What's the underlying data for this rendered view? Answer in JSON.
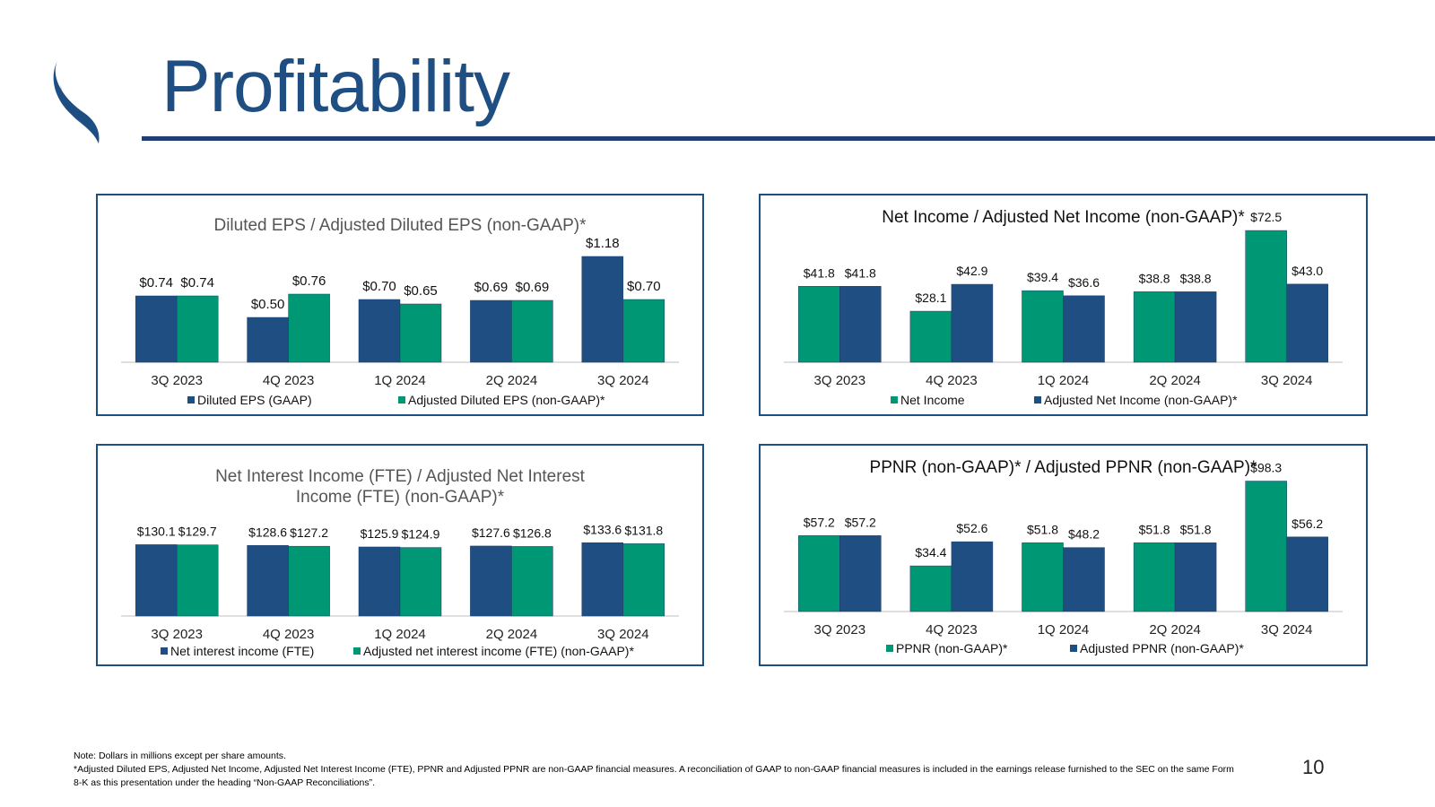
{
  "slide": {
    "title": "Profitability",
    "page_number": "10",
    "notes": [
      "Note: Dollars in millions except per share amounts.",
      "*Adjusted Diluted EPS, Adjusted Net Income, Adjusted Net Interest Income (FTE), PPNR and Adjusted PPNR are non-GAAP financial measures. A reconciliation of GAAP to non-GAAP financial measures is included in the earnings release furnished to the SEC on the same Form 8-K as this presentation under the heading “Non-GAAP Reconciliations”."
    ]
  },
  "colors": {
    "navy": "#1f4e83",
    "green": "#009874",
    "rule": "#1f3f73",
    "axis": "#bfbfbf",
    "text": "#333333"
  },
  "chart_data": [
    {
      "type": "bar",
      "title": "Diluted EPS / Adjusted Diluted EPS (non-GAAP)*",
      "categories": [
        "3Q 2023",
        "4Q 2023",
        "1Q 2024",
        "2Q 2024",
        "3Q 2024"
      ],
      "series": [
        {
          "name": "Diluted EPS (GAAP)",
          "color": "#1f4e83",
          "values": [
            0.74,
            0.5,
            0.7,
            0.69,
            1.18
          ],
          "labels": [
            "$0.74",
            "$0.50",
            "$0.70",
            "$0.69",
            "$1.18"
          ]
        },
        {
          "name": "Adjusted Diluted EPS (non-GAAP)*",
          "color": "#009874",
          "values": [
            0.74,
            0.76,
            0.65,
            0.69,
            0.7
          ],
          "labels": [
            "$0.74",
            "$0.76",
            "$0.65",
            "$0.69",
            "$0.70"
          ]
        }
      ],
      "ylim": [
        0,
        1.2
      ],
      "grid": false,
      "legend": "bottom"
    },
    {
      "type": "bar",
      "title": "Net Income / Adjusted Net Income (non-GAAP)*",
      "categories": [
        "3Q 2023",
        "4Q 2023",
        "1Q 2024",
        "2Q 2024",
        "3Q 2024"
      ],
      "series": [
        {
          "name": "Net Income",
          "color": "#009874",
          "values": [
            41.8,
            28.1,
            39.4,
            38.8,
            72.5
          ],
          "labels": [
            "$41.8",
            "$28.1",
            "$39.4",
            "$38.8",
            "$72.5"
          ]
        },
        {
          "name": "Adjusted Net Income (non-GAAP)*",
          "color": "#1f4e83",
          "values": [
            41.8,
            42.9,
            36.6,
            38.8,
            43.0
          ],
          "labels": [
            "$41.8",
            "$42.9",
            "$36.6",
            "$38.8",
            "$43.0"
          ]
        }
      ],
      "ylim": [
        0,
        75
      ],
      "grid": false,
      "legend": "bottom"
    },
    {
      "type": "bar",
      "title": "Net Interest Income (FTE) / Adjusted Net Interest Income (FTE) (non-GAAP)*",
      "title_lines": [
        "Net Interest Income (FTE) / Adjusted Net Interest",
        "Income (FTE) (non-GAAP)*"
      ],
      "categories": [
        "3Q 2023",
        "4Q 2023",
        "1Q 2024",
        "2Q 2024",
        "3Q 2024"
      ],
      "series": [
        {
          "name": "Net interest income (FTE)",
          "color": "#1f4e83",
          "values": [
            130.1,
            128.6,
            125.9,
            127.6,
            133.6
          ],
          "labels": [
            "$130.1",
            "$128.6",
            "$125.9",
            "$127.6",
            "$133.6"
          ]
        },
        {
          "name": "Adjusted net interest income (FTE) (non-GAAP)*",
          "color": "#009874",
          "values": [
            129.7,
            127.2,
            124.9,
            126.8,
            131.8
          ],
          "labels": [
            "$129.7",
            "$127.2",
            "$124.9",
            "$126.8",
            "$131.8"
          ]
        }
      ],
      "ylim": [
        0,
        170
      ],
      "grid": false,
      "legend": "bottom"
    },
    {
      "type": "bar",
      "title": "PPNR (non-GAAP)* / Adjusted PPNR (non-GAAP)*",
      "categories": [
        "3Q 2023",
        "4Q 2023",
        "1Q 2024",
        "2Q 2024",
        "3Q 2024"
      ],
      "series": [
        {
          "name": "PPNR (non-GAAP)*",
          "color": "#009874",
          "values": [
            57.2,
            34.4,
            51.8,
            51.8,
            98.3
          ],
          "labels": [
            "$57.2",
            "$34.4",
            "$51.8",
            "$51.8",
            "$98.3"
          ]
        },
        {
          "name": "Adjusted PPNR (non-GAAP)*",
          "color": "#1f4e83",
          "values": [
            57.2,
            52.6,
            48.2,
            51.8,
            56.2
          ],
          "labels": [
            "$57.2",
            "$52.6",
            "$48.2",
            "$51.8",
            "$56.2"
          ]
        }
      ],
      "ylim": [
        0,
        100
      ],
      "grid": false,
      "legend": "bottom"
    }
  ]
}
